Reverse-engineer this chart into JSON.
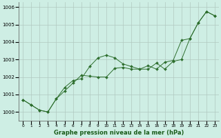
{
  "title": "Graphe pression niveau de la mer (hPa)",
  "bg_color": "#ceeee4",
  "grid_color": "#b0c8c0",
  "line_color": "#2d6e2d",
  "xlim": [
    -0.5,
    23.5
  ],
  "ylim": [
    999.5,
    1006.3
  ],
  "yticks": [
    1000,
    1001,
    1002,
    1003,
    1004,
    1005,
    1006
  ],
  "xtick_labels": [
    "0",
    "1",
    "2",
    "3",
    "4",
    "5",
    "6",
    "7",
    "8",
    "9",
    "10",
    "11",
    "12",
    "13",
    "14",
    "15",
    "16",
    "17",
    "18",
    "19",
    "20",
    "21",
    "22",
    "23"
  ],
  "series1": [
    1000.7,
    1000.4,
    1000.1,
    1000.0,
    1000.75,
    1001.4,
    1001.8,
    1001.9,
    1002.6,
    1003.1,
    1003.25,
    1003.1,
    1002.75,
    1002.6,
    1002.45,
    1002.45,
    1002.8,
    1002.45,
    1002.9,
    1003.0,
    1004.2,
    1005.1,
    1005.75,
    1005.5
  ],
  "series2": [
    1000.7,
    1000.4,
    1000.1,
    1000.0,
    1000.75,
    1001.2,
    1001.65,
    1002.1,
    1002.05,
    1002.0,
    1002.0,
    1002.5,
    1002.55,
    1002.45,
    1002.45,
    1002.65,
    1002.45,
    1002.85,
    1002.95,
    1004.1,
    1004.2,
    1005.1,
    1005.75,
    1005.5
  ]
}
